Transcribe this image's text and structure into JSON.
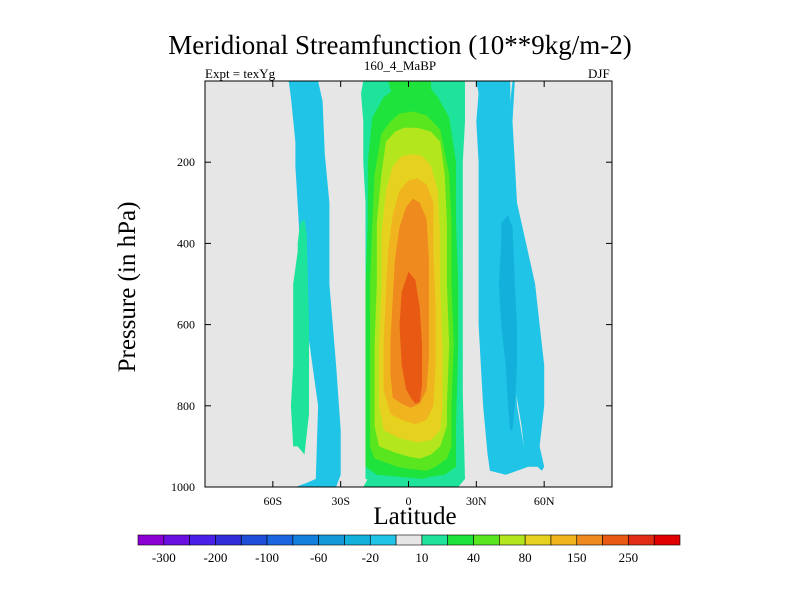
{
  "chart_data": {
    "type": "contour",
    "title": "Meridional Streamfunction (10**9kg/m-2)",
    "left_string": "Expt = texYg",
    "center_string": "160_4_MaBP",
    "right_string": "DJF",
    "xlabel": "Latitude",
    "ylabel": "Pressure (in hPa)",
    "xlim": [
      -90,
      90
    ],
    "ylim": [
      1000,
      0
    ],
    "x_ticks": [
      {
        "value": -60,
        "label": "60S"
      },
      {
        "value": -30,
        "label": "30S"
      },
      {
        "value": 0,
        "label": "0"
      },
      {
        "value": 30,
        "label": "30N"
      },
      {
        "value": 60,
        "label": "60N"
      }
    ],
    "y_ticks": [
      {
        "value": 200,
        "label": "200"
      },
      {
        "value": 400,
        "label": "400"
      },
      {
        "value": 600,
        "label": "600"
      },
      {
        "value": 800,
        "label": "800"
      },
      {
        "value": 1000,
        "label": "1000"
      }
    ],
    "background_color": "#e6e6e6",
    "colorbar": {
      "levels": [
        -300,
        -250,
        -200,
        -150,
        -100,
        -80,
        -60,
        -40,
        -20,
        -10,
        10,
        20,
        40,
        60,
        80,
        100,
        150,
        200,
        250,
        300
      ],
      "labels": [
        "-300",
        "-200",
        "-100",
        "-60",
        "-20",
        "10",
        "40",
        "80",
        "150",
        "250"
      ],
      "colors": [
        "#8a00d4",
        "#6a10e0",
        "#4a1fe8",
        "#2f2ed8",
        "#1f4fd8",
        "#1a66e0",
        "#1480dd",
        "#1498d8",
        "#14b0dc",
        "#1fc4e6",
        "#e6e6e6",
        "#1ee39a",
        "#1ee33c",
        "#5ae61e",
        "#b4e61e",
        "#e6d21e",
        "#f0b41e",
        "#ef8a1e",
        "#e85a14",
        "#e02d14",
        "#e00000"
      ]
    },
    "cells": [
      {
        "band": -1,
        "pts": [
          [
            -50,
            1000
          ],
          [
            -45,
            990
          ],
          [
            -41,
            980
          ],
          [
            -40,
            800
          ],
          [
            -45,
            600
          ],
          [
            -48,
            400
          ],
          [
            -50,
            210
          ],
          [
            -50,
            150
          ],
          [
            -52,
            40
          ],
          [
            -53,
            0
          ],
          [
            -40,
            0
          ],
          [
            -38,
            50
          ],
          [
            -37,
            180
          ],
          [
            -35,
            300
          ],
          [
            -35,
            500
          ],
          [
            -32,
            700
          ],
          [
            -30,
            860
          ],
          [
            -30,
            970
          ],
          [
            -32,
            1000
          ],
          [
            -35,
            1060
          ],
          [
            -50,
            1060
          ]
        ]
      },
      {
        "band": 1,
        "pts": [
          [
            -51,
            900
          ],
          [
            -52,
            800
          ],
          [
            -51,
            700
          ],
          [
            -51,
            600
          ],
          [
            -51,
            500
          ],
          [
            -49,
            420
          ],
          [
            -49,
            400
          ],
          [
            -48,
            350
          ],
          [
            -46,
            340
          ],
          [
            -45,
            380
          ],
          [
            -44,
            600
          ],
          [
            -44,
            820
          ],
          [
            -46,
            920
          ],
          [
            -49,
            900
          ]
        ]
      },
      {
        "band": 1,
        "pts": [
          [
            -20,
            1000
          ],
          [
            -18,
            980
          ],
          [
            -18,
            770
          ],
          [
            -18,
            640
          ],
          [
            -18,
            470
          ],
          [
            -19,
            300
          ],
          [
            -20,
            200
          ],
          [
            -20,
            100
          ],
          [
            -21,
            30
          ],
          [
            -20,
            0
          ],
          [
            25,
            0
          ],
          [
            25,
            30
          ],
          [
            25,
            100
          ],
          [
            24,
            200
          ],
          [
            24,
            300
          ],
          [
            24,
            470
          ],
          [
            24,
            640
          ],
          [
            24,
            770
          ],
          [
            25,
            980
          ],
          [
            22,
            1000
          ]
        ]
      },
      {
        "band": -1,
        "pts": [
          [
            35,
            920
          ],
          [
            33,
            800
          ],
          [
            31,
            600
          ],
          [
            31,
            400
          ],
          [
            31,
            200
          ],
          [
            30,
            100
          ],
          [
            31,
            30
          ],
          [
            30,
            0
          ],
          [
            45,
            0
          ],
          [
            45,
            50
          ],
          [
            44,
            200
          ],
          [
            45,
            300
          ],
          [
            45,
            400
          ],
          [
            47,
            500
          ],
          [
            46,
            600
          ],
          [
            47,
            700
          ],
          [
            48,
            800
          ],
          [
            51,
            900
          ],
          [
            53,
            950
          ],
          [
            43,
            970
          ],
          [
            36,
            960
          ]
        ]
      },
      {
        "band": -1,
        "pts": [
          [
            47,
            0
          ],
          [
            46,
            100
          ],
          [
            47,
            200
          ],
          [
            48,
            300
          ],
          [
            52,
            400
          ],
          [
            56,
            500
          ],
          [
            58,
            600
          ],
          [
            60,
            700
          ],
          [
            60,
            800
          ],
          [
            58,
            900
          ],
          [
            60,
            950
          ],
          [
            59,
            960
          ],
          [
            57,
            950
          ],
          [
            51,
            950
          ],
          [
            51,
            900
          ],
          [
            50,
            850
          ],
          [
            47,
            750
          ],
          [
            46,
            700
          ],
          [
            45,
            600
          ],
          [
            45,
            500
          ],
          [
            45,
            400
          ],
          [
            44,
            300
          ],
          [
            44,
            150
          ],
          [
            45,
            50
          ],
          [
            46,
            0
          ]
        ]
      },
      {
        "band": -2,
        "pts": [
          [
            44,
            800
          ],
          [
            43,
            700
          ],
          [
            41,
            600
          ],
          [
            40,
            500
          ],
          [
            41,
            400
          ],
          [
            41,
            350
          ],
          [
            44,
            330
          ],
          [
            46,
            360
          ],
          [
            47,
            500
          ],
          [
            48,
            600
          ],
          [
            48,
            700
          ],
          [
            47,
            800
          ],
          [
            46,
            860
          ],
          [
            45,
            860
          ]
        ]
      },
      {
        "band": 1,
        "pts": [
          [
            -14,
            990
          ],
          [
            -19,
            980
          ],
          [
            -19,
            920
          ],
          [
            -18,
            800
          ],
          [
            -18,
            640
          ],
          [
            -19,
            470
          ],
          [
            -19,
            330
          ],
          [
            -19,
            200
          ],
          [
            -18,
            100
          ],
          [
            -18,
            0
          ],
          [
            23,
            0
          ],
          [
            23,
            100
          ],
          [
            23,
            200
          ],
          [
            22,
            330
          ],
          [
            23,
            470
          ],
          [
            23,
            640
          ],
          [
            22,
            800
          ],
          [
            21,
            920
          ],
          [
            19,
            980
          ],
          [
            15,
            990
          ]
        ]
      },
      {
        "band": 2,
        "pts": [
          [
            -19,
            950
          ],
          [
            -19,
            850
          ],
          [
            -19,
            650
          ],
          [
            -19,
            500
          ],
          [
            -18,
            350
          ],
          [
            -18,
            200
          ],
          [
            -16,
            90
          ],
          [
            -11,
            40
          ],
          [
            -6,
            20
          ],
          [
            -3,
            0
          ],
          [
            10,
            0
          ],
          [
            10,
            20
          ],
          [
            13,
            40
          ],
          [
            18,
            90
          ],
          [
            21,
            200
          ],
          [
            21,
            350
          ],
          [
            22,
            500
          ],
          [
            22,
            650
          ],
          [
            21,
            850
          ],
          [
            21,
            950
          ],
          [
            16,
            970
          ],
          [
            10,
            975
          ],
          [
            6,
            980
          ],
          [
            -4,
            975
          ],
          [
            -14,
            970
          ]
        ]
      },
      {
        "band": 3,
        "pts": [
          [
            -15,
            930
          ],
          [
            -17,
            900
          ],
          [
            -17,
            800
          ],
          [
            -17,
            650
          ],
          [
            -17,
            500
          ],
          [
            -16,
            350
          ],
          [
            -15,
            230
          ],
          [
            -12,
            130
          ],
          [
            -8,
            100
          ],
          [
            -4,
            80
          ],
          [
            2,
            75
          ],
          [
            8,
            85
          ],
          [
            14,
            120
          ],
          [
            18,
            230
          ],
          [
            19,
            350
          ],
          [
            19,
            500
          ],
          [
            20,
            650
          ],
          [
            19,
            800
          ],
          [
            19,
            900
          ],
          [
            17,
            930
          ],
          [
            12,
            950
          ],
          [
            8,
            960
          ],
          [
            0,
            955
          ],
          [
            -5,
            950
          ]
        ]
      },
      {
        "band": 4,
        "pts": [
          [
            -13,
            900
          ],
          [
            -15,
            850
          ],
          [
            -15,
            800
          ],
          [
            -15,
            650
          ],
          [
            -14,
            500
          ],
          [
            -14,
            350
          ],
          [
            -12,
            230
          ],
          [
            -10,
            150
          ],
          [
            -6,
            125
          ],
          [
            -2,
            115
          ],
          [
            4,
            115
          ],
          [
            10,
            125
          ],
          [
            14,
            150
          ],
          [
            16,
            230
          ],
          [
            17,
            350
          ],
          [
            17,
            500
          ],
          [
            18,
            650
          ],
          [
            17,
            800
          ],
          [
            17,
            850
          ],
          [
            14,
            900
          ],
          [
            10,
            920
          ],
          [
            5,
            930
          ],
          [
            0,
            925
          ],
          [
            -6,
            915
          ]
        ]
      },
      {
        "band": 5,
        "pts": [
          [
            -11,
            860
          ],
          [
            -13,
            800
          ],
          [
            -13,
            650
          ],
          [
            -12,
            500
          ],
          [
            -12,
            380
          ],
          [
            -10,
            270
          ],
          [
            -7,
            210
          ],
          [
            -3,
            185
          ],
          [
            2,
            180
          ],
          [
            6,
            185
          ],
          [
            10,
            210
          ],
          [
            13,
            270
          ],
          [
            14,
            380
          ],
          [
            14,
            500
          ],
          [
            15,
            650
          ],
          [
            15,
            800
          ],
          [
            14,
            860
          ],
          [
            10,
            885
          ],
          [
            4,
            890
          ],
          [
            -4,
            880
          ]
        ]
      },
      {
        "band": 6,
        "pts": [
          [
            -8,
            820
          ],
          [
            -11,
            760
          ],
          [
            -11,
            650
          ],
          [
            -10,
            520
          ],
          [
            -9,
            420
          ],
          [
            -7,
            330
          ],
          [
            -4,
            270
          ],
          [
            0,
            245
          ],
          [
            4,
            240
          ],
          [
            8,
            255
          ],
          [
            11,
            300
          ],
          [
            11,
            420
          ],
          [
            12,
            550
          ],
          [
            12,
            700
          ],
          [
            11,
            800
          ],
          [
            8,
            835
          ],
          [
            3,
            845
          ],
          [
            -3,
            835
          ]
        ]
      },
      {
        "band": 7,
        "pts": [
          [
            -7,
            780
          ],
          [
            -8,
            720
          ],
          [
            -8,
            640
          ],
          [
            -7,
            540
          ],
          [
            -6,
            440
          ],
          [
            -4,
            360
          ],
          [
            -1,
            310
          ],
          [
            2,
            290
          ],
          [
            5,
            300
          ],
          [
            8,
            340
          ],
          [
            9,
            440
          ],
          [
            9,
            560
          ],
          [
            9,
            680
          ],
          [
            8,
            760
          ],
          [
            5,
            795
          ],
          [
            1,
            805
          ],
          [
            -3,
            795
          ]
        ]
      },
      {
        "band": 8,
        "pts": [
          [
            -3,
            700
          ],
          [
            -4,
            600
          ],
          [
            -3,
            520
          ],
          [
            0,
            470
          ],
          [
            3,
            490
          ],
          [
            5,
            560
          ],
          [
            6,
            650
          ],
          [
            6,
            750
          ],
          [
            5,
            790
          ],
          [
            3,
            795
          ],
          [
            1,
            780
          ],
          [
            -1,
            760
          ]
        ]
      },
      {
        "band": 2,
        "pts": [
          [
            -9,
            0
          ],
          [
            -8,
            20
          ],
          [
            -6,
            50
          ],
          [
            -2,
            60
          ],
          [
            2,
            60
          ],
          [
            6,
            50
          ],
          [
            8,
            20
          ],
          [
            9,
            0
          ]
        ]
      }
    ]
  }
}
